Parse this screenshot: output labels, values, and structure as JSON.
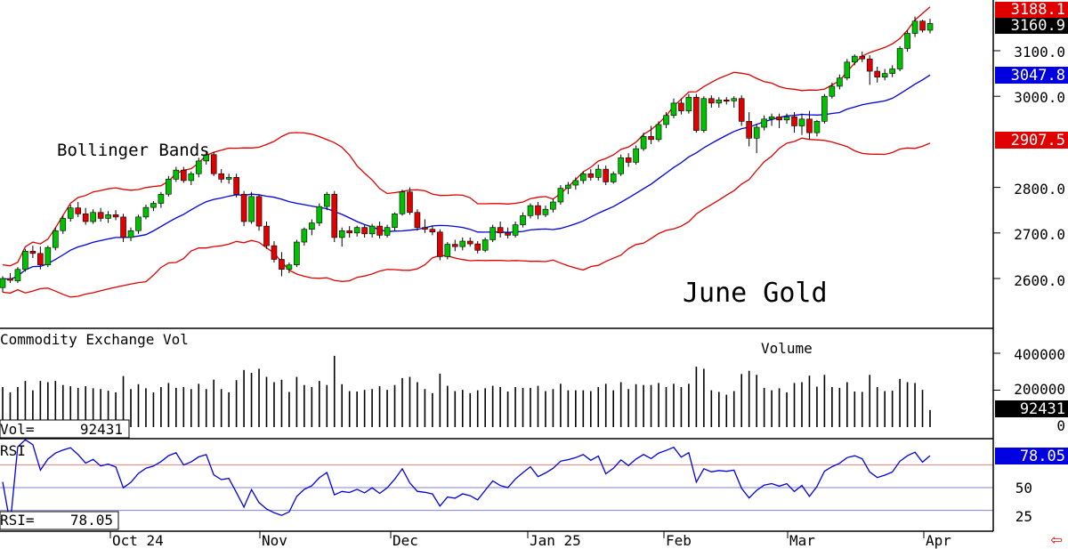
{
  "chart_data": {
    "type": "candlestick",
    "title": "June Gold",
    "annotation": "Bollinger Bands",
    "x_tick_labels": [
      "Oct 24",
      "Nov",
      "Dec",
      "Jan 25",
      "Feb",
      "Mar",
      "Apr"
    ],
    "price_axis": {
      "ylim": [
        2500,
        3190
      ],
      "ticks": [
        "2600.0",
        "2700.0",
        "2800.0",
        "3000.0",
        "3100.0"
      ]
    },
    "last_values": {
      "high_band": "3188.1",
      "close": "3160.9",
      "mid_band": "3047.8",
      "low_band": "2907.5"
    },
    "candles": [
      [
        2580,
        2605,
        2570,
        2600
      ],
      [
        2600,
        2612,
        2590,
        2596
      ],
      [
        2595,
        2625,
        2590,
        2620
      ],
      [
        2620,
        2665,
        2615,
        2660
      ],
      [
        2660,
        2672,
        2645,
        2655
      ],
      [
        2655,
        2670,
        2620,
        2630
      ],
      [
        2630,
        2672,
        2625,
        2668
      ],
      [
        2668,
        2712,
        2662,
        2705
      ],
      [
        2705,
        2738,
        2698,
        2732
      ],
      [
        2732,
        2762,
        2725,
        2755
      ],
      [
        2755,
        2768,
        2735,
        2742
      ],
      [
        2742,
        2755,
        2718,
        2725
      ],
      [
        2725,
        2752,
        2720,
        2745
      ],
      [
        2745,
        2755,
        2725,
        2732
      ],
      [
        2732,
        2748,
        2722,
        2740
      ],
      [
        2740,
        2750,
        2728,
        2735
      ],
      [
        2735,
        2742,
        2680,
        2690
      ],
      [
        2690,
        2712,
        2682,
        2705
      ],
      [
        2705,
        2740,
        2698,
        2735
      ],
      [
        2735,
        2762,
        2730,
        2756
      ],
      [
        2756,
        2770,
        2748,
        2765
      ],
      [
        2765,
        2790,
        2755,
        2785
      ],
      [
        2785,
        2825,
        2780,
        2818
      ],
      [
        2818,
        2845,
        2812,
        2838
      ],
      [
        2838,
        2845,
        2810,
        2815
      ],
      [
        2815,
        2835,
        2805,
        2830
      ],
      [
        2830,
        2865,
        2822,
        2858
      ],
      [
        2858,
        2880,
        2850,
        2872
      ],
      [
        2872,
        2878,
        2825,
        2830
      ],
      [
        2830,
        2840,
        2810,
        2818
      ],
      [
        2818,
        2830,
        2808,
        2822
      ],
      [
        2822,
        2830,
        2778,
        2785
      ],
      [
        2785,
        2792,
        2715,
        2725
      ],
      [
        2725,
        2790,
        2720,
        2780
      ],
      [
        2780,
        2785,
        2705,
        2715
      ],
      [
        2715,
        2725,
        2665,
        2672
      ],
      [
        2672,
        2682,
        2635,
        2642
      ],
      [
        2642,
        2658,
        2605,
        2620
      ],
      [
        2620,
        2635,
        2612,
        2630
      ],
      [
        2630,
        2685,
        2625,
        2680
      ],
      [
        2680,
        2712,
        2672,
        2708
      ],
      [
        2708,
        2730,
        2695,
        2722
      ],
      [
        2722,
        2765,
        2715,
        2758
      ],
      [
        2758,
        2790,
        2750,
        2785
      ],
      [
        2785,
        2792,
        2680,
        2690
      ],
      [
        2690,
        2712,
        2670,
        2705
      ],
      [
        2705,
        2715,
        2690,
        2700
      ],
      [
        2700,
        2716,
        2692,
        2712
      ],
      [
        2712,
        2718,
        2690,
        2698
      ],
      [
        2698,
        2720,
        2690,
        2715
      ],
      [
        2715,
        2725,
        2688,
        2695
      ],
      [
        2695,
        2718,
        2690,
        2712
      ],
      [
        2712,
        2745,
        2705,
        2742
      ],
      [
        2742,
        2795,
        2738,
        2790
      ],
      [
        2790,
        2800,
        2740,
        2745
      ],
      [
        2745,
        2752,
        2705,
        2712
      ],
      [
        2712,
        2730,
        2700,
        2708
      ],
      [
        2708,
        2715,
        2695,
        2702
      ],
      [
        2702,
        2708,
        2640,
        2648
      ],
      [
        2648,
        2680,
        2642,
        2675
      ],
      [
        2675,
        2685,
        2660,
        2670
      ],
      [
        2670,
        2690,
        2662,
        2682
      ],
      [
        2682,
        2690,
        2670,
        2676
      ],
      [
        2676,
        2682,
        2655,
        2662
      ],
      [
        2662,
        2690,
        2658,
        2685
      ],
      [
        2685,
        2718,
        2680,
        2712
      ],
      [
        2712,
        2725,
        2690,
        2700
      ],
      [
        2700,
        2712,
        2688,
        2695
      ],
      [
        2695,
        2725,
        2690,
        2718
      ],
      [
        2718,
        2745,
        2712,
        2738
      ],
      [
        2738,
        2765,
        2732,
        2760
      ],
      [
        2760,
        2768,
        2730,
        2740
      ],
      [
        2740,
        2760,
        2735,
        2752
      ],
      [
        2752,
        2775,
        2745,
        2768
      ],
      [
        2768,
        2805,
        2762,
        2798
      ],
      [
        2798,
        2812,
        2785,
        2805
      ],
      [
        2805,
        2822,
        2795,
        2815
      ],
      [
        2815,
        2835,
        2808,
        2830
      ],
      [
        2830,
        2840,
        2815,
        2822
      ],
      [
        2822,
        2850,
        2815,
        2840
      ],
      [
        2840,
        2848,
        2805,
        2812
      ],
      [
        2812,
        2835,
        2808,
        2830
      ],
      [
        2830,
        2872,
        2825,
        2865
      ],
      [
        2865,
        2875,
        2845,
        2855
      ],
      [
        2855,
        2892,
        2850,
        2885
      ],
      [
        2885,
        2920,
        2880,
        2912
      ],
      [
        2912,
        2935,
        2895,
        2905
      ],
      [
        2905,
        2945,
        2900,
        2938
      ],
      [
        2938,
        2965,
        2930,
        2958
      ],
      [
        2958,
        2995,
        2952,
        2985
      ],
      [
        2985,
        2995,
        2960,
        2968
      ],
      [
        2968,
        3005,
        2962,
        2998
      ],
      [
        2998,
        3005,
        2920,
        2925
      ],
      [
        2925,
        3000,
        2920,
        2995
      ],
      [
        2995,
        3002,
        2975,
        2985
      ],
      [
        2985,
        2998,
        2975,
        2992
      ],
      [
        2992,
        2998,
        2982,
        2990
      ],
      [
        2990,
        3000,
        2975,
        2995
      ],
      [
        2995,
        3002,
        2935,
        2945
      ],
      [
        2945,
        2965,
        2890,
        2908
      ],
      [
        2908,
        2940,
        2875,
        2932
      ],
      [
        2932,
        2958,
        2925,
        2950
      ],
      [
        2950,
        2962,
        2935,
        2955
      ],
      [
        2955,
        2962,
        2930,
        2948
      ],
      [
        2948,
        2962,
        2940,
        2955
      ],
      [
        2955,
        2965,
        2920,
        2935
      ],
      [
        2935,
        2962,
        2915,
        2950
      ],
      [
        2950,
        2968,
        2905,
        2920
      ],
      [
        2920,
        2948,
        2912,
        2945
      ],
      [
        2945,
        3005,
        2940,
        3000
      ],
      [
        3000,
        3030,
        2995,
        3022
      ],
      [
        3022,
        3048,
        3015,
        3040
      ],
      [
        3040,
        3082,
        3035,
        3075
      ],
      [
        3075,
        3092,
        3068,
        3088
      ],
      [
        3088,
        3098,
        3075,
        3082
      ],
      [
        3082,
        3090,
        3025,
        3055
      ],
      [
        3055,
        3065,
        3030,
        3042
      ],
      [
        3042,
        3060,
        3035,
        3050
      ],
      [
        3050,
        3068,
        3042,
        3060
      ],
      [
        3060,
        3110,
        3055,
        3105
      ],
      [
        3105,
        3145,
        3098,
        3138
      ],
      [
        3138,
        3175,
        3130,
        3165
      ],
      [
        3165,
        3168,
        3140,
        3145
      ],
      [
        3145,
        3170,
        3138,
        3160
      ]
    ],
    "volume_panel": {
      "title": "Commodity Exchange Vol",
      "series_label": "Volume",
      "ticks": [
        "400000",
        "200000",
        "0"
      ],
      "readout_label": "Vol=",
      "readout_value": "92431",
      "last_tag": "92431",
      "ylim": [
        0,
        440000
      ]
    },
    "rsi_panel": {
      "title": "RSI",
      "ticks": [
        "50",
        "25"
      ],
      "readout_label": "RSI=",
      "readout_value": "78.05",
      "last_tag": "78.05",
      "levels": [
        70,
        30
      ],
      "ylim": [
        15,
        95
      ]
    },
    "colors": {
      "up": "#00c000",
      "down": "#e00000",
      "mid_band": "#0000e0",
      "bands": "#e00000",
      "rsi": "#0000e0",
      "volume": "#000000"
    }
  },
  "nav": {
    "arrow_label": "⇦"
  }
}
